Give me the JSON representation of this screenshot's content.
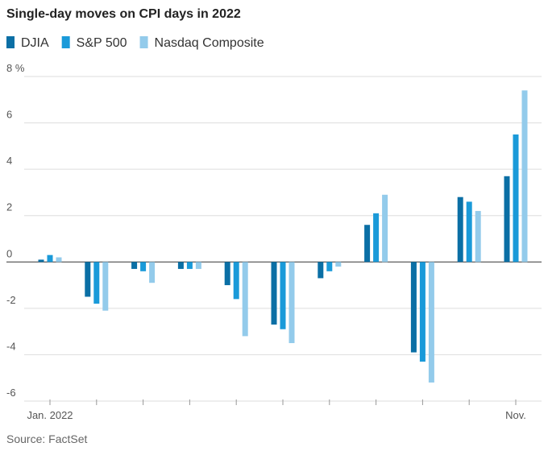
{
  "chart_data": {
    "type": "bar",
    "title": "Single-day moves on CPI days in 2022",
    "source": "Source: FactSet",
    "categories": [
      "Jan. 2022",
      null,
      null,
      null,
      null,
      null,
      null,
      null,
      null,
      null,
      "Nov."
    ],
    "series": [
      {
        "name": "DJIA",
        "color": "#0b6fa5",
        "values": [
          0.1,
          -1.5,
          -0.3,
          -0.3,
          -1.0,
          -2.7,
          -0.7,
          1.6,
          -3.9,
          2.8,
          3.7
        ]
      },
      {
        "name": "S&P 500",
        "color": "#1a9ad9",
        "values": [
          0.3,
          -1.8,
          -0.4,
          -0.3,
          -1.6,
          -2.9,
          -0.4,
          2.1,
          -4.3,
          2.6,
          5.5
        ]
      },
      {
        "name": "Nasdaq Composite",
        "color": "#93cbeb",
        "values": [
          0.2,
          -2.1,
          -0.9,
          -0.3,
          -3.2,
          -3.5,
          -0.2,
          2.9,
          -5.2,
          2.2,
          7.4
        ]
      }
    ],
    "ylim": [
      -6,
      8
    ],
    "yticks": [
      -6,
      -4,
      -2,
      0,
      2,
      4,
      6,
      {
        "value": 8,
        "label": "8 %"
      }
    ],
    "grid": true
  }
}
